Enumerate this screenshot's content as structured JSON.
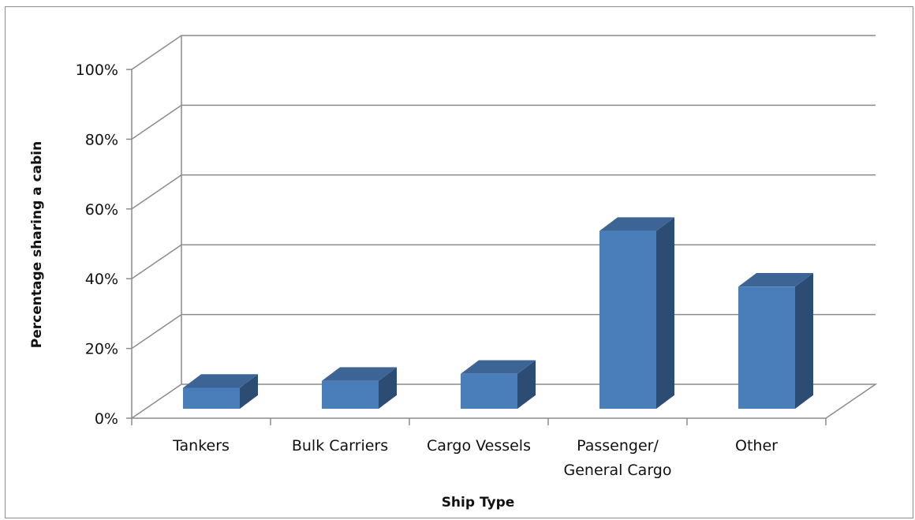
{
  "chart_data": {
    "type": "bar",
    "three_d": true,
    "xlabel": "Ship Type",
    "ylabel": "Percentage sharing a cabin",
    "categories": [
      "Tankers",
      "Bulk Carriers",
      "Cargo Vessels",
      "Passenger/ General Cargo",
      "Other"
    ],
    "category_lines": [
      [
        "Tankers"
      ],
      [
        "Bulk Carriers"
      ],
      [
        "Cargo Vessels"
      ],
      [
        "Passenger/",
        "General Cargo"
      ],
      [
        "Other"
      ]
    ],
    "values": [
      6,
      8,
      10,
      51,
      35
    ],
    "yunit": "%",
    "ylim": [
      0,
      100
    ],
    "yticks": [
      "0%",
      "20%",
      "40%",
      "60%",
      "80%",
      "100%"
    ],
    "grid": true,
    "legend": "none",
    "colors": {
      "bar_front": "#4a7ebb",
      "bar_top": "#3c6596",
      "bar_side": "#2d4c73",
      "grid": "#8c8c8c"
    }
  }
}
